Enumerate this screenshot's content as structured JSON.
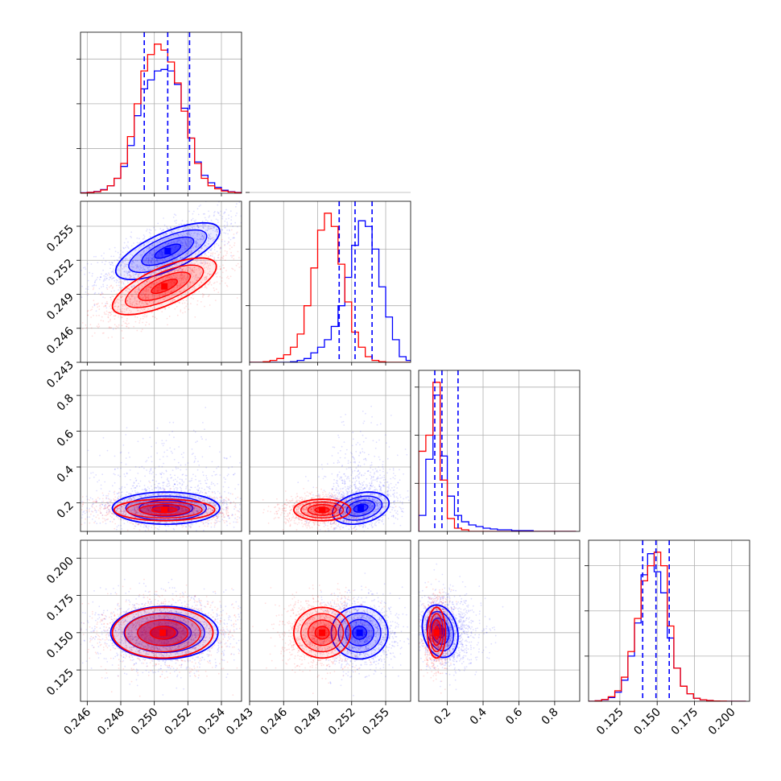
{
  "chart_data": {
    "type": "corner",
    "parameters": 4,
    "grid": true,
    "colors": {
      "blue": "#0000ff",
      "red": "#ff0000"
    },
    "axes": {
      "p1": {
        "range": [
          0.2456,
          0.2552
        ],
        "ticks": [
          0.246,
          0.248,
          0.25,
          0.252,
          0.254
        ],
        "tick_labels": [
          "0.246",
          "0.248",
          "0.250",
          "0.252",
          "0.254"
        ]
      },
      "p2": {
        "range": [
          0.243,
          0.2572
        ],
        "ticks": [
          0.243,
          0.246,
          0.249,
          0.252,
          0.255
        ],
        "tick_labels": [
          "0.243",
          "0.246",
          "0.249",
          "0.252",
          "0.255"
        ]
      },
      "p3": {
        "range": [
          0.04,
          0.94
        ],
        "ticks": [
          0.2,
          0.4,
          0.6,
          0.8
        ],
        "tick_labels": [
          "0.2",
          "0.4",
          "0.6",
          "0.8"
        ]
      },
      "p4": {
        "range": [
          0.104,
          0.212
        ],
        "ticks": [
          0.125,
          0.15,
          0.175,
          0.2
        ],
        "tick_labels": [
          "0.125",
          "0.150",
          "0.175",
          "0.200"
        ]
      }
    },
    "y_ticks_p4": [
      "0.125",
      "0.150",
      "0.175",
      "0.200"
    ],
    "marginals": [
      {
        "param": "p1",
        "bin_edges": [
          0.2456,
          0.246,
          0.2464,
          0.2468,
          0.2472,
          0.2476,
          0.248,
          0.2484,
          0.2488,
          0.2492,
          0.2496,
          0.25,
          0.2504,
          0.2508,
          0.2512,
          0.2516,
          0.252,
          0.2524,
          0.2528,
          0.2532,
          0.2536,
          0.254,
          0.2544,
          0.2548,
          0.2552
        ],
        "blue": [
          0.003,
          0.006,
          0.012,
          0.025,
          0.05,
          0.1,
          0.18,
          0.32,
          0.52,
          0.7,
          0.76,
          0.82,
          0.83,
          0.82,
          0.73,
          0.57,
          0.37,
          0.21,
          0.12,
          0.07,
          0.04,
          0.02,
          0.01,
          0.005
        ],
        "red": [
          0.002,
          0.005,
          0.01,
          0.022,
          0.05,
          0.1,
          0.2,
          0.38,
          0.6,
          0.82,
          0.93,
          1.0,
          0.96,
          0.88,
          0.74,
          0.55,
          0.37,
          0.2,
          0.1,
          0.05,
          0.03,
          0.015,
          0.008,
          0.004
        ],
        "quantiles": [
          0.2494,
          0.2508,
          0.2521
        ]
      },
      {
        "param": "p2",
        "bin_edges": [
          0.243,
          0.2436,
          0.2442,
          0.2448,
          0.2454,
          0.246,
          0.2466,
          0.2472,
          0.2478,
          0.2484,
          0.249,
          0.2496,
          0.2502,
          0.2508,
          0.2514,
          0.252,
          0.2526,
          0.2532,
          0.2538,
          0.2544,
          0.255,
          0.2556,
          0.2562,
          0.2568,
          0.2574
        ],
        "blue": [
          0,
          0,
          0,
          0,
          0,
          0,
          0.003,
          0.01,
          0.02,
          0.05,
          0.08,
          0.12,
          0.19,
          0.3,
          0.45,
          0.62,
          0.75,
          0.72,
          0.6,
          0.4,
          0.24,
          0.12,
          0.03,
          0.01
        ],
        "red": [
          0,
          0,
          0.003,
          0.01,
          0.02,
          0.04,
          0.08,
          0.15,
          0.3,
          0.5,
          0.7,
          0.79,
          0.72,
          0.52,
          0.32,
          0.16,
          0.08,
          0.03,
          0.01,
          0.003,
          0,
          0,
          0,
          0
        ],
        "quantiles": [
          0.2509,
          0.2523,
          0.2538
        ]
      },
      {
        "param": "p3",
        "bin_edges": [
          0.04,
          0.08,
          0.12,
          0.16,
          0.2,
          0.24,
          0.28,
          0.32,
          0.36,
          0.4,
          0.44,
          0.48,
          0.52,
          0.56,
          0.6,
          0.64,
          0.68,
          0.72,
          0.76,
          0.8,
          0.84,
          0.88,
          0.92
        ],
        "blue": [
          0.1,
          0.45,
          0.85,
          0.47,
          0.22,
          0.1,
          0.06,
          0.04,
          0.03,
          0.02,
          0.015,
          0.01,
          0.01,
          0.005,
          0.005,
          0.005,
          0,
          0,
          0,
          0,
          0,
          0
        ],
        "red": [
          0.5,
          0.6,
          0.93,
          0.32,
          0.08,
          0.02,
          0.01,
          0,
          0,
          0,
          0,
          0,
          0,
          0,
          0,
          0,
          0,
          0,
          0,
          0,
          0,
          0
        ],
        "quantiles": [
          0.13,
          0.17,
          0.26
        ]
      },
      {
        "param": "p4",
        "bin_edges": [
          0.104,
          0.1084,
          0.1128,
          0.1172,
          0.1216,
          0.126,
          0.1304,
          0.1348,
          0.1392,
          0.1436,
          0.148,
          0.1524,
          0.1568,
          0.1612,
          0.1656,
          0.17,
          0.1744,
          0.1788,
          0.1832,
          0.1876,
          0.192,
          0.1964,
          0.2008,
          0.2052,
          0.2096
        ],
        "blue": [
          0,
          0.003,
          0.01,
          0.025,
          0.06,
          0.14,
          0.3,
          0.52,
          0.84,
          0.98,
          0.86,
          0.72,
          0.42,
          0.22,
          0.1,
          0.05,
          0.02,
          0.01,
          0.005,
          0.002,
          0,
          0,
          0,
          0
        ],
        "red": [
          0,
          0.003,
          0.012,
          0.03,
          0.07,
          0.16,
          0.33,
          0.55,
          0.8,
          0.9,
          0.99,
          0.9,
          0.5,
          0.22,
          0.1,
          0.05,
          0.02,
          0.01,
          0.005,
          0.002,
          0.001,
          0,
          0,
          0
        ],
        "quantiles": [
          0.1403,
          0.1492,
          0.1581
        ]
      }
    ],
    "pairs": [
      {
        "x": "p1",
        "y": "p2",
        "blue": {
          "mean": [
            0.2508,
            0.2528
          ],
          "sd": [
            0.00155,
            0.00125
          ],
          "rho": 0.7
        },
        "red": {
          "mean": [
            0.2506,
            0.2497
          ],
          "sd": [
            0.00155,
            0.00125
          ],
          "rho": 0.7
        }
      },
      {
        "x": "p1",
        "y": "p3",
        "blue": {
          "mean": [
            0.2507,
            0.17
          ],
          "sd": [
            0.0016,
            0.045
          ],
          "rho": 0.0
        },
        "red": {
          "mean": [
            0.2506,
            0.16
          ],
          "sd": [
            0.0015,
            0.03
          ],
          "rho": 0.0
        }
      },
      {
        "x": "p2",
        "y": "p3",
        "blue": {
          "mean": [
            0.2528,
            0.17
          ],
          "sd": [
            0.00125,
            0.045
          ],
          "rho": 0.3
        },
        "red": {
          "mean": [
            0.2494,
            0.16
          ],
          "sd": [
            0.00125,
            0.03
          ],
          "rho": 0.0
        }
      },
      {
        "x": "p1",
        "y": "p4",
        "blue": {
          "mean": [
            0.2506,
            0.15
          ],
          "sd": [
            0.0016,
            0.0088
          ],
          "rho": 0.0
        },
        "red": {
          "mean": [
            0.2505,
            0.15
          ],
          "sd": [
            0.0015,
            0.0085
          ],
          "rho": 0.0
        }
      },
      {
        "x": "p2",
        "y": "p4",
        "blue": {
          "mean": [
            0.2527,
            0.15
          ],
          "sd": [
            0.00125,
            0.0088
          ],
          "rho": 0.0
        },
        "red": {
          "mean": [
            0.2494,
            0.15
          ],
          "sd": [
            0.00125,
            0.0085
          ],
          "rho": 0.0
        }
      },
      {
        "x": "p3",
        "y": "p4",
        "blue": {
          "mean": [
            0.16,
            0.151
          ],
          "sd": [
            0.05,
            0.0088
          ],
          "rho": -0.2
        },
        "red": {
          "mean": [
            0.14,
            0.15
          ],
          "sd": [
            0.025,
            0.0085
          ],
          "rho": 0.0
        }
      }
    ]
  }
}
